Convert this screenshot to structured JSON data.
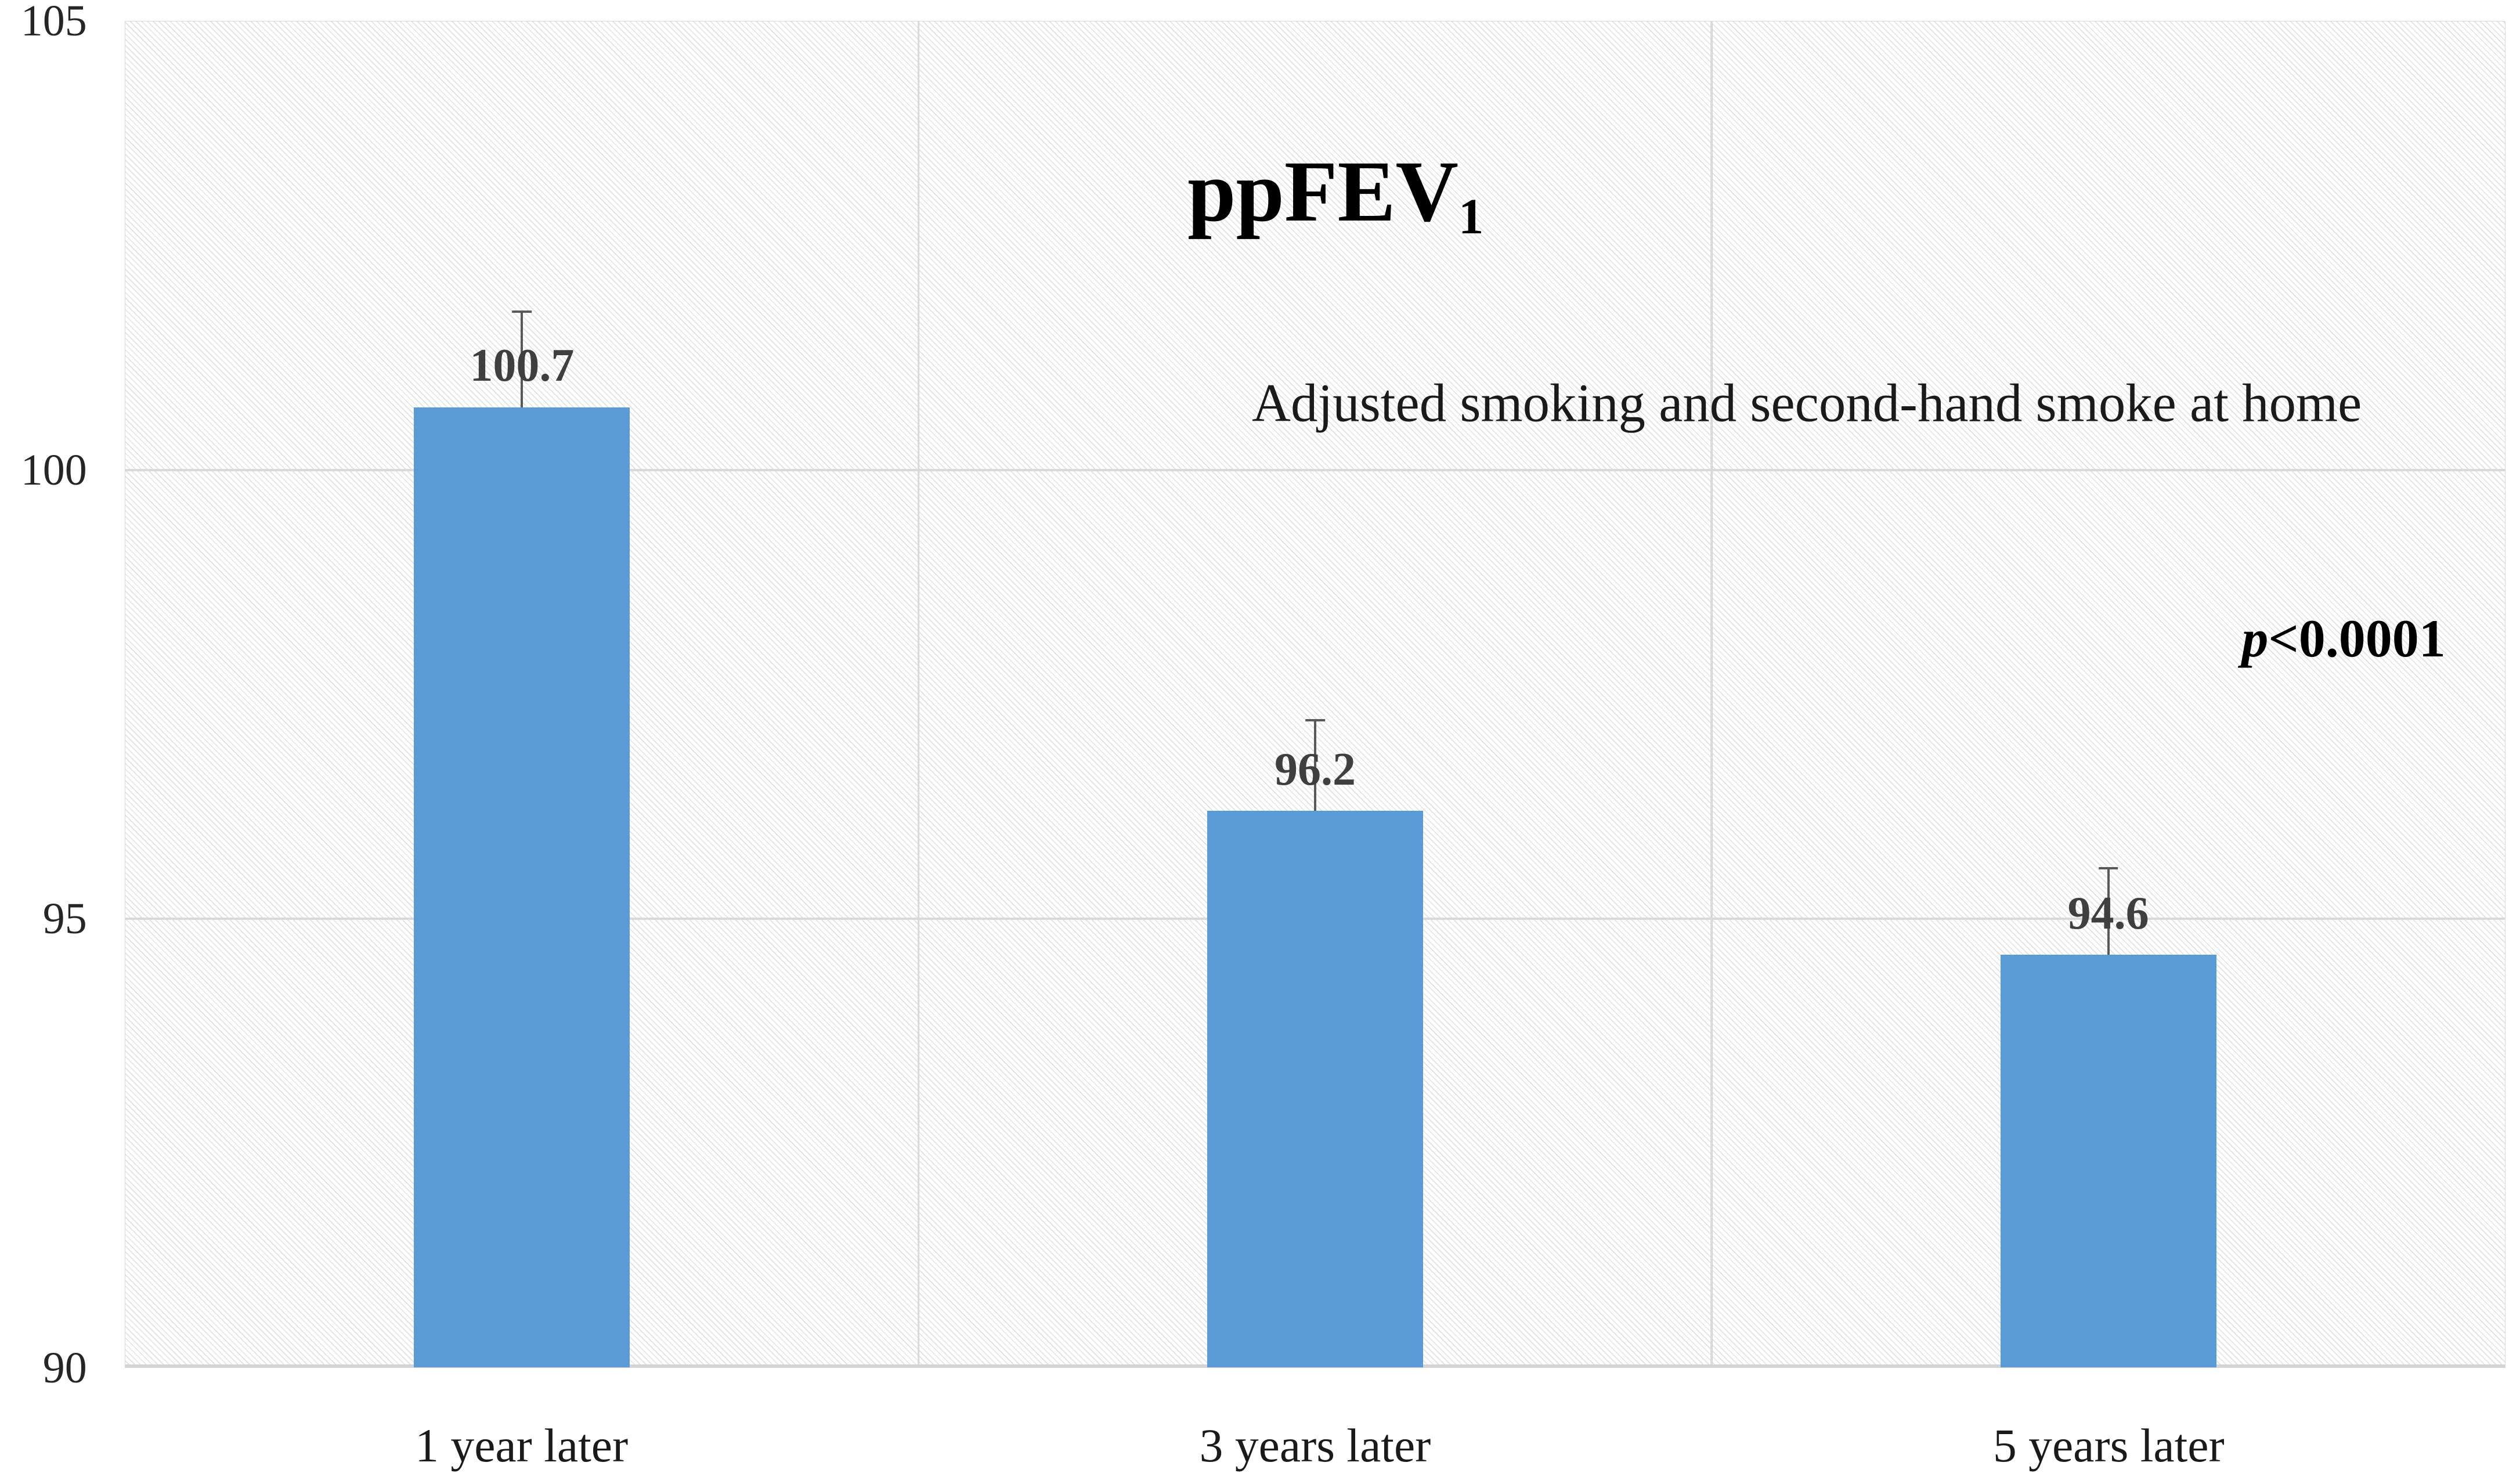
{
  "figure": {
    "title_main": "ppFEV",
    "title_subscript": "1",
    "subtitle": "Adjusted smoking and second-hand smoke at home",
    "annotation": {
      "p_symbol": "p",
      "comparison": "<0.0001"
    }
  },
  "chart_data": {
    "type": "bar",
    "title": "ppFEV1",
    "subtitle": "Adjusted smoking and second-hand smoke at home",
    "annotation": "p<0.0001",
    "categories": [
      "1 year later",
      "3 years later",
      "5 years later"
    ],
    "values": [
      100.7,
      96.2,
      94.6
    ],
    "data_labels": [
      "100.7",
      "96.2",
      "94.6"
    ],
    "error_up": [
      1.05,
      1.0,
      0.95
    ],
    "ylim": [
      90,
      105
    ],
    "ylabel": "",
    "xlabel": "",
    "y_ticks": [
      {
        "label": "105",
        "value": 105
      },
      {
        "label": "100",
        "value": 100
      },
      {
        "label": "95",
        "value": 95
      },
      {
        "label": "90",
        "value": 90
      }
    ],
    "gridlines_y": [
      100,
      95
    ],
    "grid": true,
    "legend": "none",
    "bar_width_pct": 9.07,
    "bar_color": "#5b9bd5",
    "error_bar_color": "#595959",
    "gridline_color": "#d9d9d9",
    "plot_hatch": "light-diagonal",
    "label_color": "#3f3f3f"
  }
}
